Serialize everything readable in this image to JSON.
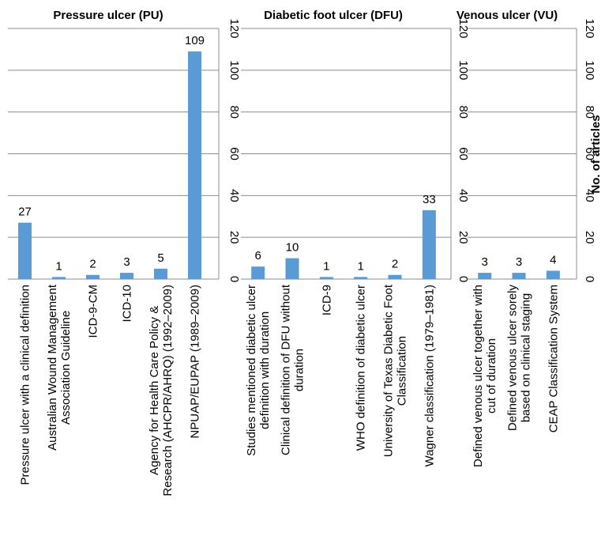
{
  "chart_data": [
    {
      "type": "bar",
      "title": "Pressure ulcer (PU)",
      "categories": [
        "Pressure ulcer with a clinical definition",
        "Australian Wound Management|Association Guideline",
        "ICD-9-CM",
        "ICD-10",
        "Agency for Health Care Policy &|Research (AHCPR/AHRQ) (1992–2009)",
        "NPUAP/EUPAP (1989–2009)"
      ],
      "values": [
        27,
        1,
        2,
        3,
        5,
        109
      ],
      "ylim": [
        0,
        120
      ],
      "yticks": [
        0,
        20,
        40,
        60,
        80,
        100,
        120
      ],
      "color": "#5b9bd5"
    },
    {
      "type": "bar",
      "title": "Diabetic foot ulcer (DFU)",
      "categories": [
        "Studies mentioned diabetic ulcer|definition with duration",
        "Clinical definition of DFU without|duration",
        "ICD-9",
        "WHO definition  of diabetic ulcer",
        "University of Texas Diabetic Foot|Classification",
        "Wagner classification (1979–1981)"
      ],
      "values": [
        6,
        10,
        1,
        1,
        2,
        33
      ],
      "ylim": [
        0,
        120
      ],
      "yticks": [
        0,
        20,
        40,
        60,
        80,
        100,
        120
      ],
      "color": "#5b9bd5"
    },
    {
      "type": "bar",
      "title": "Venous ulcer (VU)",
      "ylabel": "No. of articles",
      "categories": [
        "Defined venous ulcer together with|cut of duration",
        "Defined venous ulcer sorely|based on clinical staging",
        "CEAP Classification System"
      ],
      "values": [
        3,
        3,
        4
      ],
      "ylim": [
        0,
        120
      ],
      "yticks": [
        0,
        20,
        40,
        60,
        80,
        100,
        120
      ],
      "color": "#5b9bd5"
    }
  ]
}
